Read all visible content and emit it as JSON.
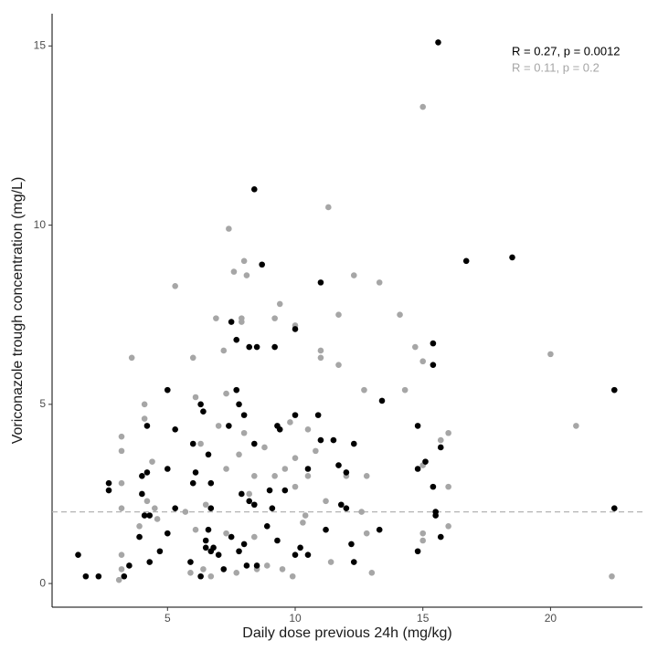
{
  "chart_data": {
    "type": "scatter",
    "x_label": "Daily dose  previous 24h (mg/kg)",
    "y_label": "Voriconazole trough concentration (mg/L)",
    "xlim": [
      0.48,
      23.6
    ],
    "ylim": [
      -0.66,
      15.9
    ],
    "xticks": [
      5,
      10,
      15,
      20
    ],
    "yticks": [
      0,
      5,
      10,
      15
    ],
    "reference_line": 2,
    "annotations": [
      {
        "text": "R = 0.27, p = 0.0012",
        "color": "#000000"
      },
      {
        "text": "R = 0.11, p = 0.2",
        "color": "#a6a6a6"
      }
    ],
    "series": [
      {
        "color": "#a6a6a6",
        "x": [
          3.2,
          3.2,
          3.2,
          3.2,
          3.2,
          3.2,
          3.1,
          3.6,
          3.9,
          4.1,
          4.1,
          4.2,
          4.4,
          4.5,
          4.6,
          5.3,
          5.7,
          6.0,
          5.9,
          6.1,
          6.3,
          6.1,
          6.4,
          6.5,
          6.7,
          6.9,
          7.0,
          7.2,
          7.3,
          7.3,
          7.3,
          7.4,
          7.6,
          7.7,
          7.8,
          7.9,
          7.9,
          8.0,
          8.1,
          8.0,
          8.2,
          8.4,
          8.4,
          8.5,
          8.8,
          8.9,
          9.2,
          9.2,
          9.4,
          9.5,
          9.6,
          9.8,
          9.9,
          10.0,
          10.0,
          10.0,
          10.3,
          10.4,
          10.5,
          10.5,
          10.8,
          11.0,
          11.0,
          11.3,
          11.2,
          11.4,
          11.7,
          11.7,
          12.0,
          12.3,
          12.6,
          12.7,
          12.8,
          12.8,
          13.0,
          13.3,
          14.1,
          14.3,
          14.7,
          15.0,
          15.0,
          15.0,
          15.0,
          15.0,
          15.7,
          16.0,
          16.0,
          16.0,
          20.0,
          21.0,
          22.4
        ],
        "values": [
          4.1,
          3.7,
          2.8,
          2.1,
          0.8,
          0.4,
          0.1,
          6.3,
          1.6,
          5.0,
          4.6,
          2.3,
          3.4,
          2.1,
          1.8,
          8.3,
          2.0,
          6.3,
          0.3,
          5.2,
          3.9,
          1.5,
          0.4,
          2.2,
          0.2,
          7.4,
          4.4,
          6.5,
          5.3,
          3.2,
          1.4,
          9.9,
          8.7,
          0.3,
          3.6,
          7.3,
          7.4,
          9.0,
          8.6,
          4.2,
          2.5,
          3.0,
          1.3,
          0.4,
          3.8,
          0.5,
          7.4,
          3.0,
          7.8,
          0.4,
          3.2,
          4.5,
          0.2,
          7.2,
          3.5,
          2.7,
          1.7,
          1.9,
          4.3,
          3.0,
          3.7,
          6.5,
          6.3,
          10.5,
          2.3,
          0.6,
          6.1,
          7.5,
          3.0,
          8.6,
          2.0,
          5.4,
          1.4,
          3.0,
          0.3,
          8.4,
          7.5,
          5.4,
          6.6,
          13.3,
          6.2,
          1.4,
          3.3,
          1.2,
          4.0,
          4.2,
          2.7,
          1.6,
          6.4,
          4.4,
          0.2
        ]
      },
      {
        "color": "#000000",
        "x": [
          1.5,
          1.8,
          2.3,
          2.7,
          2.7,
          3.3,
          3.5,
          3.9,
          4.0,
          4.0,
          4.1,
          4.2,
          4.2,
          4.3,
          4.3,
          4.7,
          5.0,
          5.0,
          5.0,
          5.3,
          5.3,
          5.9,
          6.0,
          6.0,
          6.1,
          6.3,
          6.4,
          6.3,
          6.5,
          6.5,
          6.6,
          6.6,
          6.7,
          6.7,
          6.7,
          6.8,
          7.0,
          7.2,
          7.4,
          7.5,
          7.5,
          7.7,
          7.7,
          7.8,
          7.8,
          7.9,
          8.0,
          8.0,
          8.2,
          8.1,
          8.2,
          8.4,
          8.4,
          8.4,
          8.5,
          8.5,
          8.7,
          8.9,
          9.0,
          9.1,
          9.2,
          9.3,
          9.4,
          9.3,
          9.6,
          10.0,
          10.0,
          10.0,
          10.2,
          10.5,
          10.5,
          11.0,
          10.9,
          11.0,
          11.2,
          11.5,
          11.7,
          11.8,
          12.0,
          12.0,
          12.2,
          12.3,
          12.3,
          13.4,
          13.3,
          14.8,
          14.8,
          14.8,
          15.1,
          15.4,
          15.4,
          15.4,
          15.5,
          15.6,
          15.7,
          15.5,
          15.7,
          16.7,
          18.5,
          22.5,
          22.5
        ],
        "values": [
          0.8,
          0.2,
          0.2,
          2.6,
          2.8,
          0.2,
          0.5,
          1.3,
          3.0,
          2.5,
          1.9,
          4.4,
          3.1,
          1.9,
          0.6,
          0.9,
          5.4,
          3.2,
          1.4,
          4.3,
          2.1,
          0.6,
          3.9,
          2.8,
          3.1,
          5.0,
          4.8,
          0.2,
          1.0,
          1.2,
          3.6,
          1.5,
          0.9,
          2.1,
          2.8,
          1.0,
          0.8,
          0.4,
          4.4,
          1.3,
          7.3,
          6.8,
          5.4,
          5.0,
          0.9,
          2.5,
          4.7,
          1.1,
          6.6,
          0.5,
          2.3,
          11.0,
          3.9,
          2.2,
          6.6,
          0.5,
          8.9,
          1.6,
          2.6,
          2.1,
          6.6,
          4.4,
          4.3,
          1.2,
          2.6,
          7.1,
          4.7,
          0.8,
          1.0,
          3.2,
          0.8,
          8.4,
          4.7,
          4.0,
          1.5,
          4.0,
          3.3,
          2.2,
          3.1,
          2.1,
          1.1,
          3.9,
          0.6,
          5.1,
          1.5,
          4.4,
          3.2,
          0.9,
          3.4,
          6.7,
          6.1,
          2.7,
          2.0,
          15.1,
          3.8,
          1.9,
          1.3,
          9.0,
          9.1,
          5.4,
          2.1
        ]
      }
    ]
  }
}
